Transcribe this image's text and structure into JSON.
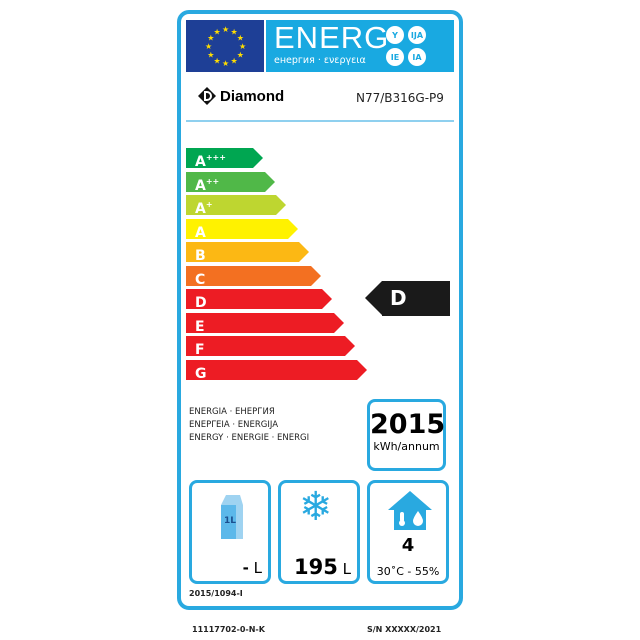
{
  "header": {
    "title": "ENERG",
    "subtitle": "енергия · ενεργεια",
    "languages": [
      "Y",
      "IJA",
      "IE",
      "IA"
    ]
  },
  "brand": "Diamond",
  "model": "N77/B316G-P9",
  "scale": [
    {
      "cls": "A",
      "sup": "+++",
      "color": "#00a651"
    },
    {
      "cls": "A",
      "sup": "++",
      "color": "#50b848"
    },
    {
      "cls": "A",
      "sup": "+",
      "color": "#bed630"
    },
    {
      "cls": "A",
      "sup": "",
      "color": "#fff200"
    },
    {
      "cls": "B",
      "sup": "",
      "color": "#fcb814"
    },
    {
      "cls": "C",
      "sup": "",
      "color": "#f37021"
    },
    {
      "cls": "D",
      "sup": "",
      "color": "#ed1c24"
    },
    {
      "cls": "E",
      "sup": "",
      "color": "#ed1c24"
    },
    {
      "cls": "F",
      "sup": "",
      "color": "#ed1c24"
    },
    {
      "cls": "G",
      "sup": "",
      "color": "#ed1c24"
    }
  ],
  "rating": "D",
  "energy_words": [
    "ENERGIA · ЕНЕРГИЯ",
    "ΕΝΕΡΓΕΙΑ · ENERGIJA",
    "ENERGY · ENERGIE · ENERGI"
  ],
  "consumption": {
    "value": "2015",
    "unit": "kWh/annum"
  },
  "chill": {
    "icon_text": "1L",
    "value": "-",
    "unit": "L"
  },
  "frozen": {
    "value": "195",
    "unit": "L"
  },
  "climate": {
    "value": "4",
    "conditions": "30˚C - 55%"
  },
  "regulation": "2015/1094-I",
  "footer": {
    "code": "11117702-0-N-K",
    "serial": "S/N XXXXX/2021"
  },
  "accent": "#29a9e0"
}
